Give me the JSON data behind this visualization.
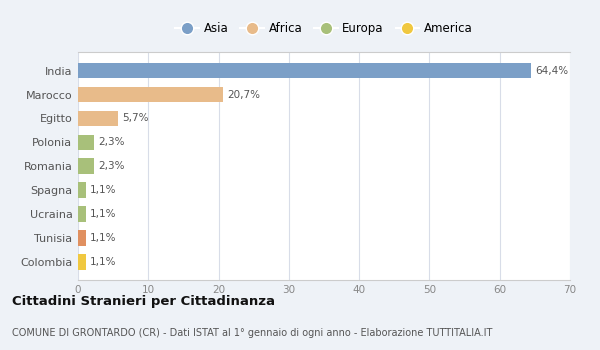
{
  "categories": [
    "India",
    "Marocco",
    "Egitto",
    "Polonia",
    "Romania",
    "Spagna",
    "Ucraina",
    "Tunisia",
    "Colombia"
  ],
  "values": [
    64.4,
    20.7,
    5.7,
    2.3,
    2.3,
    1.1,
    1.1,
    1.1,
    1.1
  ],
  "labels": [
    "64,4%",
    "20,7%",
    "5,7%",
    "2,3%",
    "2,3%",
    "1,1%",
    "1,1%",
    "1,1%",
    "1,1%"
  ],
  "colors": [
    "#7b9fc7",
    "#e8bb8a",
    "#e8bb8a",
    "#a8c07a",
    "#a8c07a",
    "#a8c07a",
    "#a8c07a",
    "#e09060",
    "#f0c840"
  ],
  "legend_labels": [
    "Asia",
    "Africa",
    "Europa",
    "America"
  ],
  "legend_colors": [
    "#7b9fc7",
    "#e8bb8a",
    "#a8c07a",
    "#f0c840"
  ],
  "title": "Cittadini Stranieri per Cittadinanza",
  "subtitle": "COMUNE DI GRONTARDO (CR) - Dati ISTAT al 1° gennaio di ogni anno - Elaborazione TUTTITALIA.IT",
  "xlim": [
    0,
    70
  ],
  "xticks": [
    0,
    10,
    20,
    30,
    40,
    50,
    60,
    70
  ],
  "background_color": "#eef2f7",
  "plot_bg_color": "#ffffff",
  "bar_height": 0.65
}
